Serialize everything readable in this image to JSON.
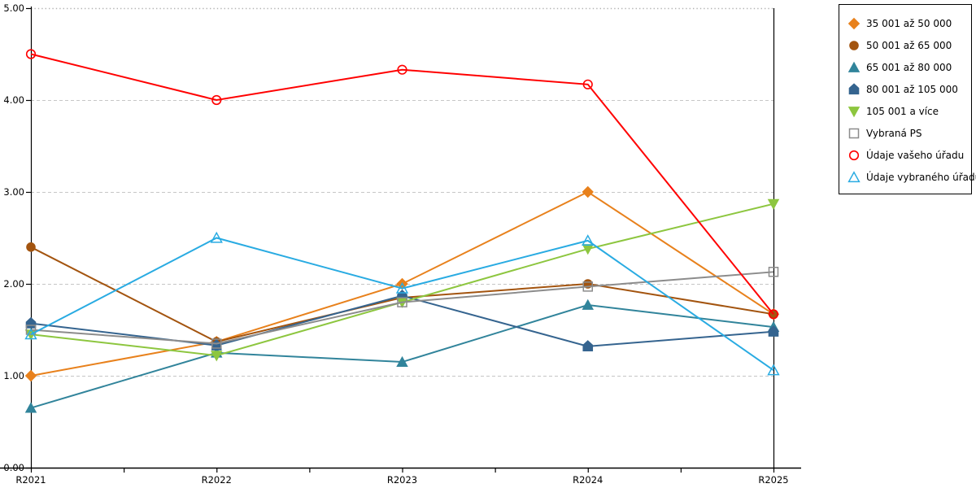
{
  "chart_data": {
    "type": "line",
    "title": "",
    "xlabel": "",
    "ylabel": "",
    "categories": [
      "R2021",
      "R2022",
      "R2023",
      "R2024",
      "R2025"
    ],
    "ylim": [
      0,
      5
    ],
    "ytick_labels": [
      "0.00",
      "1.00",
      "2.00",
      "3.00",
      "4.00",
      "5.00"
    ],
    "grid": "horizontal dashed gridlines at 1.00-4.00, dotted at 5.00",
    "legend_position": "outside top-right, boxed",
    "axis_color": "#000000",
    "gridline_color": "#c6c6c6",
    "series": [
      {
        "name": "35 001 až 50 000",
        "marker": "diamond",
        "filled": true,
        "color": "#e8811c",
        "values": [
          1.0,
          1.37,
          2.0,
          3.0,
          1.67
        ]
      },
      {
        "name": "50 001 až 65 000",
        "marker": "circle",
        "filled": true,
        "color": "#a3540f",
        "values": [
          2.4,
          1.37,
          1.85,
          2.0,
          1.67
        ]
      },
      {
        "name": "65 001 až 80 000",
        "marker": "triangle-up",
        "filled": true,
        "color": "#31849b",
        "values": [
          0.65,
          1.25,
          1.15,
          1.77,
          1.53
        ]
      },
      {
        "name": "80 001 až 105 000",
        "marker": "pentagon",
        "filled": true,
        "color": "#35648f",
        "values": [
          1.57,
          1.33,
          1.87,
          1.32,
          1.48
        ]
      },
      {
        "name": "105 001 a více",
        "marker": "triangle-down",
        "filled": true,
        "color": "#8dc63f",
        "values": [
          1.45,
          1.22,
          1.8,
          2.38,
          2.87
        ]
      },
      {
        "name": "Vybraná PS",
        "marker": "square",
        "filled": false,
        "color": "#8c8c8c",
        "values": [
          1.5,
          1.35,
          1.8,
          1.97,
          2.13
        ]
      },
      {
        "name": "Údaje vašeho úřadu",
        "marker": "circle",
        "filled": false,
        "color": "#ff0000",
        "values": [
          4.5,
          4.0,
          4.33,
          4.17,
          1.67
        ]
      },
      {
        "name": "Údaje vybraného úřadu",
        "marker": "triangle-up",
        "filled": false,
        "color": "#29abe2",
        "values": [
          1.45,
          2.5,
          1.95,
          2.47,
          1.06
        ]
      }
    ]
  }
}
